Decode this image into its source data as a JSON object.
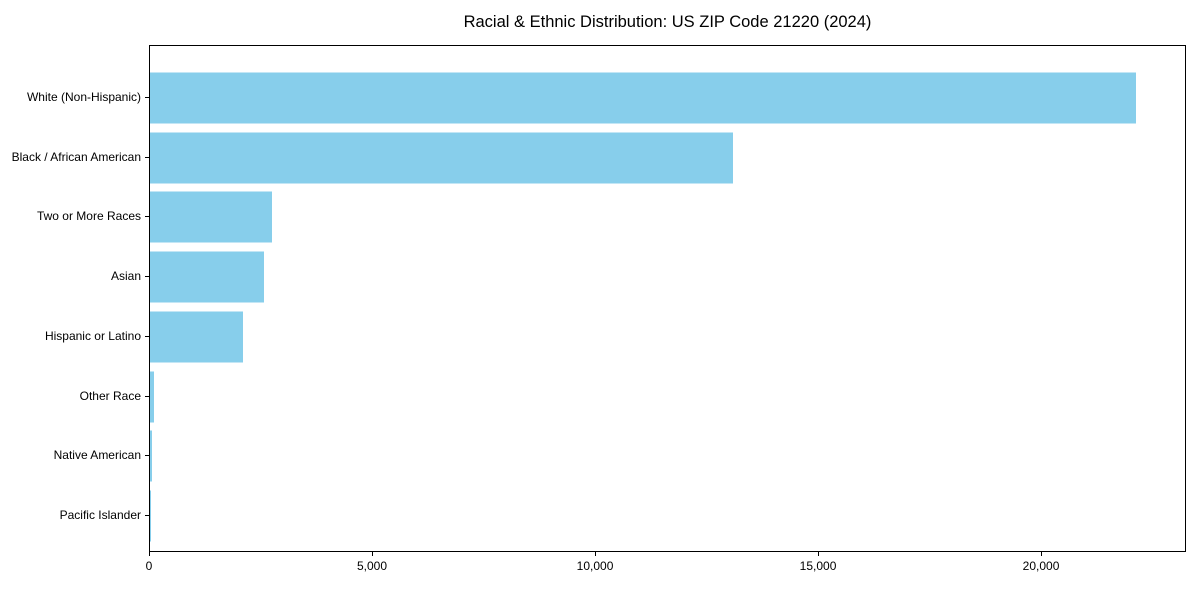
{
  "title": "Racial & Ethnic Distribution: US ZIP Code 21220 (2024)",
  "chart_data": {
    "type": "bar",
    "orientation": "horizontal",
    "title": "Racial & Ethnic Distribution: US ZIP Code 21220 (2024)",
    "categories": [
      "White (Non-Hispanic)",
      "Black / African American",
      "Two or More Races",
      "Asian",
      "Hispanic or Latino",
      "Other Race",
      "Native American",
      "Pacific Islander"
    ],
    "values": [
      22150,
      13100,
      2750,
      2550,
      2100,
      90,
      40,
      10
    ],
    "xlabel": "",
    "ylabel": "",
    "xlim": [
      0,
      23250
    ],
    "xticks": [
      0,
      5000,
      10000,
      15000,
      20000
    ],
    "xtick_labels": [
      "0",
      "5,000",
      "10,000",
      "15,000",
      "20,000"
    ],
    "bar_color": "#87CEEB",
    "grid": false,
    "legend": null
  }
}
